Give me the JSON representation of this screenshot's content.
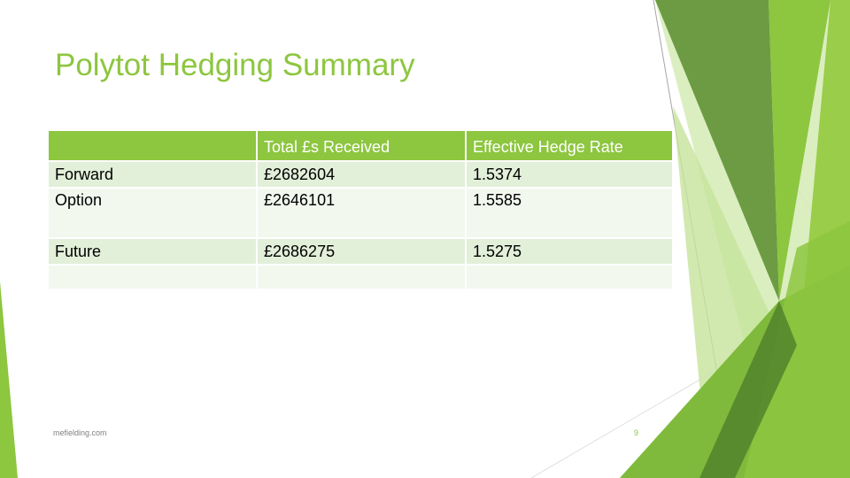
{
  "slide": {
    "title": "Polytot Hedging Summary",
    "footer": "mefielding.com",
    "page_number": "9",
    "accent_color": "#8dc63f",
    "band_color_dark": "#e2efd9",
    "band_color_light": "#f2f8ee"
  },
  "table": {
    "headers": [
      "",
      "Total £s Received",
      "Effective Hedge Rate"
    ],
    "rows": [
      [
        "Forward",
        "£2682604",
        "1.5374"
      ],
      [
        "Option",
        "£2646101",
        "1.5585"
      ],
      [
        "Future",
        "£2686275",
        "1.5275"
      ],
      [
        "",
        "",
        ""
      ]
    ]
  }
}
